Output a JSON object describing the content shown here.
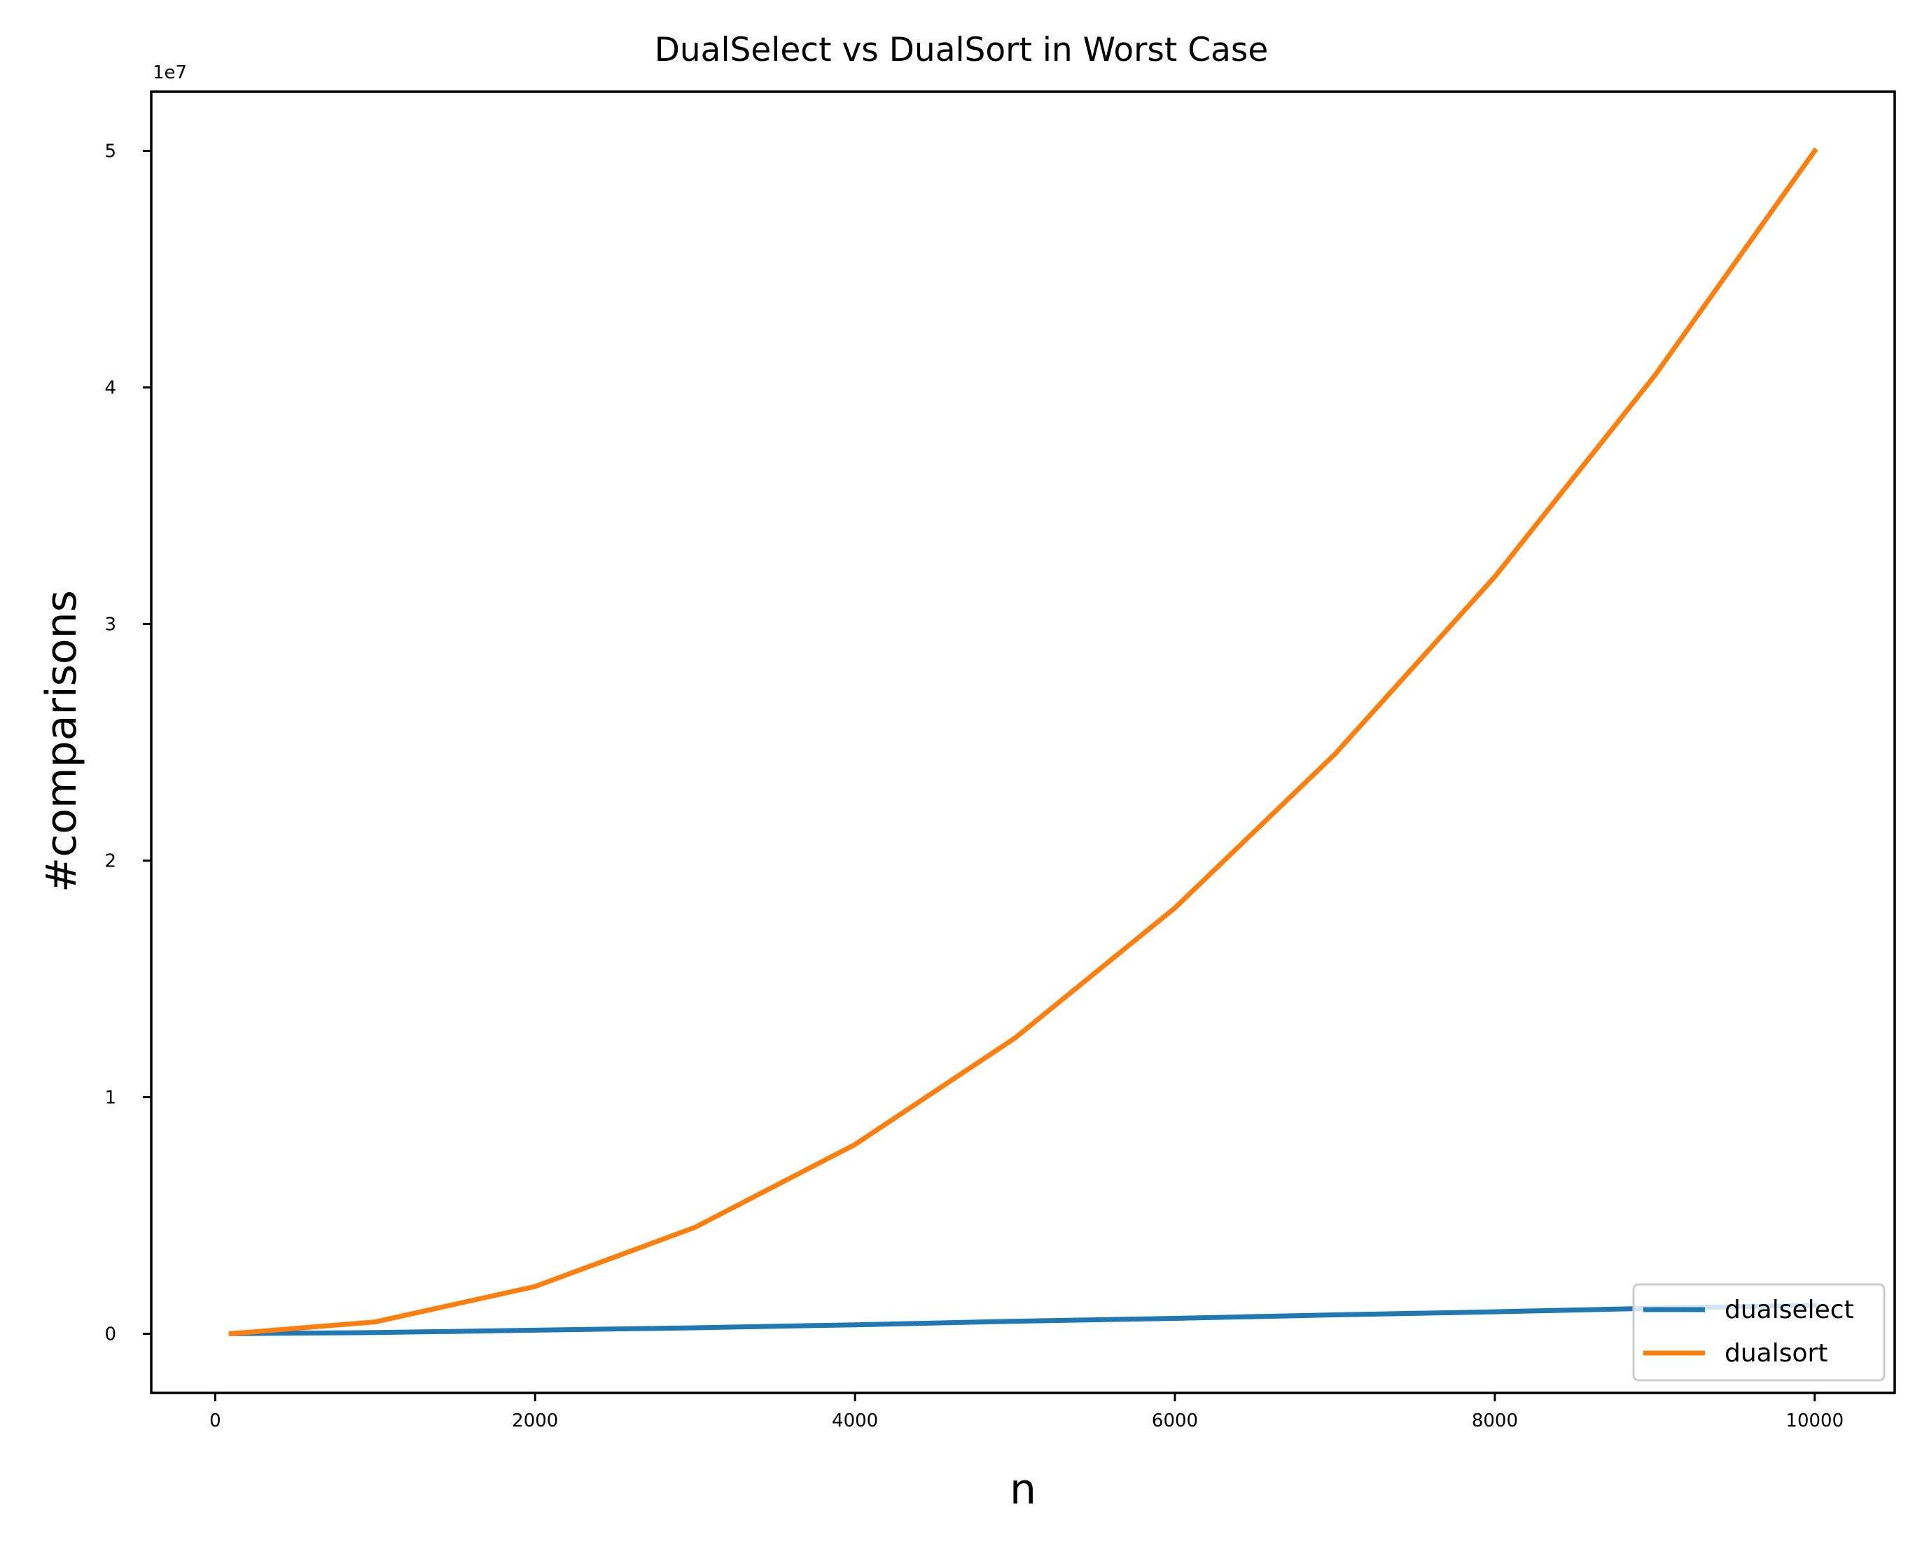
{
  "chart_data": {
    "type": "line",
    "title": "DualSelect vs DualSort in Worst Case",
    "xlabel": "n",
    "ylabel": "#comparisons",
    "y_offset_label": "1e7",
    "y_scale_factor": 10000000,
    "xlim": [
      -400,
      10500
    ],
    "ylim": [
      -2500000,
      52500000
    ],
    "x_ticks": [
      0,
      2000,
      4000,
      6000,
      8000,
      10000
    ],
    "x_tick_labels": [
      "0",
      "2000",
      "4000",
      "6000",
      "8000",
      "10000"
    ],
    "y_ticks": [
      0,
      10000000,
      20000000,
      30000000,
      40000000,
      50000000
    ],
    "y_tick_labels": [
      "0",
      "1",
      "2",
      "3",
      "4",
      "5"
    ],
    "grid": false,
    "legend_position": "lower right",
    "x": [
      100,
      1000,
      2000,
      3000,
      4000,
      5000,
      6000,
      7000,
      8000,
      9000,
      10000
    ],
    "series": [
      {
        "name": "dualselect",
        "color": "#1f77b4",
        "values": [
          5000,
          50000,
          150000,
          250000,
          380000,
          530000,
          650000,
          800000,
          930000,
          1080000,
          1200000
        ]
      },
      {
        "name": "dualsort",
        "color": "#ff7f0e",
        "values": [
          5000,
          500000,
          2000000,
          4500000,
          8000000,
          12500000,
          18000000,
          24500000,
          32000000,
          40500000,
          50000000
        ]
      }
    ]
  }
}
